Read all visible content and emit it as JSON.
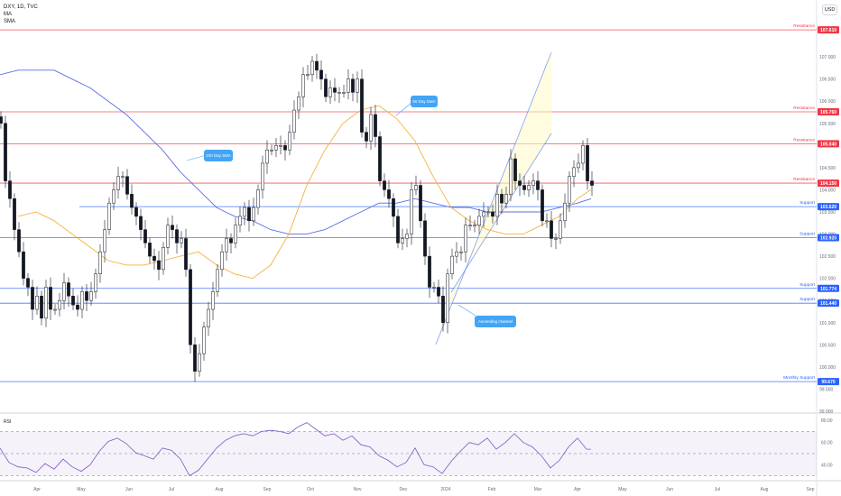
{
  "legend": {
    "symbol": "DXY, 1D, TVC",
    "line2": "MA",
    "line3": "SMA"
  },
  "currency_button": "USD",
  "chart_data": {
    "type": "candlestick",
    "title": "DXY, 1D, TVC",
    "ylim": [
      99.0,
      108.0
    ],
    "yticks": [
      {
        "v": 107.0,
        "label": "107.000"
      },
      {
        "v": 106.5,
        "label": "106.500"
      },
      {
        "v": 106.0,
        "label": "106.000"
      },
      {
        "v": 105.5,
        "label": "105.500"
      },
      {
        "v": 105.0,
        "label": "105.000"
      },
      {
        "v": 104.5,
        "label": "104.500"
      },
      {
        "v": 104.0,
        "label": "104.000"
      },
      {
        "v": 103.5,
        "label": "103.500"
      },
      {
        "v": 103.0,
        "label": "103.000"
      },
      {
        "v": 102.5,
        "label": "102.500"
      },
      {
        "v": 102.0,
        "label": "102.000"
      },
      {
        "v": 101.5,
        "label": "101.500"
      },
      {
        "v": 101.0,
        "label": "101.000"
      },
      {
        "v": 100.5,
        "label": "100.500"
      },
      {
        "v": 100.0,
        "label": "100.000"
      },
      {
        "v": 99.5,
        "label": "99.500"
      },
      {
        "v": 99.0,
        "label": "99.000"
      }
    ],
    "months": [
      "Apr",
      "May",
      "Jun",
      "Jul",
      "Aug",
      "Sep",
      "Oct",
      "Nov",
      "Dec",
      "2024",
      "Feb",
      "Mar",
      "Apr",
      "May",
      "Jun",
      "Jul",
      "Aug",
      "Sep"
    ],
    "levels": [
      {
        "value": 107.61,
        "label": "107.610",
        "kind": "Resistance",
        "color": "#f23645"
      },
      {
        "value": 105.76,
        "label": "105.760",
        "kind": "Resistance",
        "color": "#f23645"
      },
      {
        "value": 105.04,
        "label": "105.040",
        "kind": "Resistance",
        "color": "#f23645"
      },
      {
        "value": 104.15,
        "label": "104.150",
        "kind": "Resistance",
        "color": "#f23645"
      },
      {
        "value": 103.62,
        "label": "103.620",
        "kind": "Support",
        "color": "#2962ff"
      },
      {
        "value": 102.92,
        "label": "102.920",
        "kind": "Support",
        "color": "#2962ff"
      },
      {
        "value": 101.774,
        "label": "101.774",
        "kind": "Support",
        "color": "#2962ff"
      },
      {
        "value": 101.44,
        "label": "101.440",
        "kind": "Support",
        "color": "#2962ff"
      },
      {
        "value": 99.67,
        "label": "99.670",
        "kind": "Monthly Support",
        "color": "#2962ff"
      }
    ],
    "closes": [
      [
        0,
        105.5
      ],
      [
        5,
        104.2
      ],
      [
        10,
        103.8
      ],
      [
        15,
        103.1
      ],
      [
        20,
        102.6
      ],
      [
        25,
        102.0
      ],
      [
        30,
        101.8
      ],
      [
        35,
        101.3
      ],
      [
        40,
        101.6
      ],
      [
        45,
        101.1
      ],
      [
        50,
        101.8
      ],
      [
        55,
        101.3
      ],
      [
        60,
        101.3
      ],
      [
        65,
        101.5
      ],
      [
        70,
        101.9
      ],
      [
        75,
        101.6
      ],
      [
        80,
        101.4
      ],
      [
        85,
        101.3
      ],
      [
        90,
        101.7
      ],
      [
        95,
        101.5
      ],
      [
        100,
        101.7
      ],
      [
        105,
        102.1
      ],
      [
        110,
        102.6
      ],
      [
        115,
        103.1
      ],
      [
        120,
        103.7
      ],
      [
        125,
        104.0
      ],
      [
        130,
        104.3
      ],
      [
        135,
        104.3
      ],
      [
        140,
        103.9
      ],
      [
        145,
        103.6
      ],
      [
        150,
        103.4
      ],
      [
        155,
        103.1
      ],
      [
        160,
        102.8
      ],
      [
        165,
        102.5
      ],
      [
        170,
        102.4
      ],
      [
        175,
        102.2
      ],
      [
        180,
        102.7
      ],
      [
        185,
        103.2
      ],
      [
        190,
        103.1
      ],
      [
        195,
        102.8
      ],
      [
        200,
        102.9
      ],
      [
        205,
        102.2
      ],
      [
        210,
        100.5
      ],
      [
        215,
        99.9
      ],
      [
        220,
        100.3
      ],
      [
        225,
        100.9
      ],
      [
        230,
        101.3
      ],
      [
        235,
        101.7
      ],
      [
        240,
        102.2
      ],
      [
        245,
        102.6
      ],
      [
        250,
        102.9
      ],
      [
        255,
        102.8
      ],
      [
        260,
        103.2
      ],
      [
        265,
        103.4
      ],
      [
        270,
        103.6
      ],
      [
        275,
        103.3
      ],
      [
        280,
        103.6
      ],
      [
        285,
        104.0
      ],
      [
        290,
        104.6
      ],
      [
        295,
        104.9
      ],
      [
        300,
        104.9
      ],
      [
        305,
        105.0
      ],
      [
        310,
        105.0
      ],
      [
        315,
        104.9
      ],
      [
        320,
        105.3
      ],
      [
        325,
        105.8
      ],
      [
        330,
        106.1
      ],
      [
        335,
        106.6
      ],
      [
        340,
        106.6
      ],
      [
        345,
        106.9
      ],
      [
        350,
        106.7
      ],
      [
        355,
        106.5
      ],
      [
        360,
        106.1
      ],
      [
        365,
        106.3
      ],
      [
        370,
        106.2
      ],
      [
        375,
        106.2
      ],
      [
        380,
        106.2
      ],
      [
        385,
        106.5
      ],
      [
        390,
        106.2
      ],
      [
        395,
        106.5
      ],
      [
        400,
        105.3
      ],
      [
        405,
        105.1
      ],
      [
        410,
        105.7
      ],
      [
        415,
        105.2
      ],
      [
        420,
        104.2
      ],
      [
        425,
        104.0
      ],
      [
        430,
        103.8
      ],
      [
        435,
        103.4
      ],
      [
        440,
        102.8
      ],
      [
        445,
        102.9
      ],
      [
        450,
        103.0
      ],
      [
        455,
        104.0
      ],
      [
        460,
        104.1
      ],
      [
        465,
        103.3
      ],
      [
        470,
        102.5
      ],
      [
        475,
        101.8
      ],
      [
        480,
        101.8
      ],
      [
        485,
        101.6
      ],
      [
        490,
        101.0
      ],
      [
        495,
        102.1
      ],
      [
        500,
        102.5
      ],
      [
        505,
        102.6
      ],
      [
        510,
        102.6
      ],
      [
        515,
        103.2
      ],
      [
        520,
        103.2
      ],
      [
        525,
        103.2
      ],
      [
        530,
        103.4
      ],
      [
        535,
        103.5
      ],
      [
        540,
        103.5
      ],
      [
        545,
        103.4
      ],
      [
        550,
        103.9
      ],
      [
        555,
        103.7
      ],
      [
        560,
        103.9
      ],
      [
        565,
        104.7
      ],
      [
        570,
        104.2
      ],
      [
        575,
        104.1
      ],
      [
        580,
        104.0
      ],
      [
        585,
        104.1
      ],
      [
        590,
        104.2
      ],
      [
        595,
        104.0
      ],
      [
        600,
        103.3
      ],
      [
        605,
        103.3
      ],
      [
        610,
        102.9
      ],
      [
        615,
        102.9
      ],
      [
        620,
        103.3
      ],
      [
        625,
        103.7
      ],
      [
        630,
        104.3
      ],
      [
        635,
        104.5
      ],
      [
        640,
        104.6
      ],
      [
        645,
        105.0
      ],
      [
        650,
        104.2
      ],
      [
        655,
        104.1
      ]
    ],
    "sma50": [
      [
        20,
        103.4
      ],
      [
        40,
        103.5
      ],
      [
        60,
        103.3
      ],
      [
        80,
        103.0
      ],
      [
        100,
        102.7
      ],
      [
        120,
        102.4
      ],
      [
        140,
        102.3
      ],
      [
        160,
        102.3
      ],
      [
        180,
        102.4
      ],
      [
        200,
        102.5
      ],
      [
        220,
        102.6
      ],
      [
        240,
        102.3
      ],
      [
        260,
        102.1
      ],
      [
        280,
        102.0
      ],
      [
        300,
        102.3
      ],
      [
        320,
        103.0
      ],
      [
        340,
        104.1
      ],
      [
        360,
        104.9
      ],
      [
        380,
        105.5
      ],
      [
        400,
        105.8
      ],
      [
        420,
        105.9
      ],
      [
        440,
        105.6
      ],
      [
        460,
        105.1
      ],
      [
        480,
        104.3
      ],
      [
        500,
        103.6
      ],
      [
        520,
        103.3
      ],
      [
        540,
        103.1
      ],
      [
        560,
        103.0
      ],
      [
        580,
        103.0
      ],
      [
        600,
        103.2
      ],
      [
        620,
        103.4
      ],
      [
        640,
        103.8
      ],
      [
        655,
        104.0
      ]
    ],
    "sma200": [
      [
        0,
        106.6
      ],
      [
        20,
        106.7
      ],
      [
        40,
        106.7
      ],
      [
        60,
        106.7
      ],
      [
        80,
        106.5
      ],
      [
        100,
        106.3
      ],
      [
        120,
        106.0
      ],
      [
        140,
        105.7
      ],
      [
        160,
        105.3
      ],
      [
        180,
        104.9
      ],
      [
        200,
        104.4
      ],
      [
        220,
        104.0
      ],
      [
        240,
        103.6
      ],
      [
        260,
        103.4
      ],
      [
        280,
        103.3
      ],
      [
        300,
        103.1
      ],
      [
        320,
        103.0
      ],
      [
        340,
        103.0
      ],
      [
        360,
        103.1
      ],
      [
        380,
        103.3
      ],
      [
        400,
        103.5
      ],
      [
        420,
        103.7
      ],
      [
        440,
        103.7
      ],
      [
        460,
        103.8
      ],
      [
        480,
        103.7
      ],
      [
        500,
        103.6
      ],
      [
        520,
        103.6
      ],
      [
        540,
        103.5
      ],
      [
        560,
        103.5
      ],
      [
        580,
        103.5
      ],
      [
        600,
        103.5
      ],
      [
        620,
        103.6
      ],
      [
        640,
        103.7
      ],
      [
        655,
        103.8
      ]
    ],
    "rsi": {
      "label": "RSI",
      "ticks": [
        {
          "v": 80,
          "label": "80.00"
        },
        {
          "v": 60,
          "label": "60.00"
        },
        {
          "v": 40,
          "label": "40.00"
        }
      ],
      "band": [
        30,
        70
      ],
      "values": [
        [
          0,
          55
        ],
        [
          10,
          42
        ],
        [
          20,
          38
        ],
        [
          30,
          37
        ],
        [
          40,
          33
        ],
        [
          50,
          41
        ],
        [
          60,
          36
        ],
        [
          70,
          45
        ],
        [
          80,
          38
        ],
        [
          90,
          34
        ],
        [
          100,
          40
        ],
        [
          110,
          52
        ],
        [
          120,
          61
        ],
        [
          130,
          64
        ],
        [
          140,
          59
        ],
        [
          150,
          51
        ],
        [
          160,
          48
        ],
        [
          170,
          45
        ],
        [
          180,
          55
        ],
        [
          190,
          53
        ],
        [
          200,
          45
        ],
        [
          210,
          30
        ],
        [
          220,
          35
        ],
        [
          230,
          45
        ],
        [
          240,
          55
        ],
        [
          250,
          62
        ],
        [
          260,
          66
        ],
        [
          270,
          68
        ],
        [
          280,
          66
        ],
        [
          290,
          70
        ],
        [
          300,
          71
        ],
        [
          310,
          70
        ],
        [
          320,
          68
        ],
        [
          330,
          74
        ],
        [
          340,
          78
        ],
        [
          350,
          72
        ],
        [
          360,
          66
        ],
        [
          370,
          68
        ],
        [
          380,
          62
        ],
        [
          390,
          66
        ],
        [
          400,
          58
        ],
        [
          410,
          56
        ],
        [
          420,
          48
        ],
        [
          430,
          44
        ],
        [
          440,
          38
        ],
        [
          450,
          42
        ],
        [
          460,
          55
        ],
        [
          470,
          40
        ],
        [
          480,
          38
        ],
        [
          490,
          32
        ],
        [
          500,
          43
        ],
        [
          510,
          52
        ],
        [
          520,
          60
        ],
        [
          530,
          58
        ],
        [
          540,
          64
        ],
        [
          550,
          54
        ],
        [
          560,
          60
        ],
        [
          570,
          68
        ],
        [
          580,
          60
        ],
        [
          590,
          56
        ],
        [
          600,
          48
        ],
        [
          610,
          37
        ],
        [
          620,
          44
        ],
        [
          630,
          56
        ],
        [
          640,
          64
        ],
        [
          650,
          54
        ],
        [
          655,
          54
        ]
      ]
    },
    "annotations": [
      {
        "text": "200 Day SMA"
      },
      {
        "text": "50 Day SMA"
      },
      {
        "text": "Ascending channel"
      }
    ]
  }
}
